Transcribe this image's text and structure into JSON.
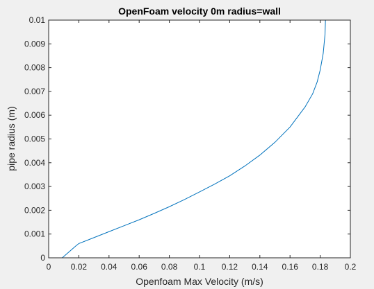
{
  "chart_data": {
    "type": "line",
    "title": "OpenFoam velocity 0m radius=wall",
    "xlabel": "Openfoam Max Velocity (m/s)",
    "ylabel": "pipe radius (m)",
    "xlim": [
      0,
      0.2
    ],
    "ylim": [
      0,
      0.01
    ],
    "x_ticks": [
      "0",
      "0.02",
      "0.04",
      "0.06",
      "0.08",
      "0.1",
      "0.12",
      "0.14",
      "0.16",
      "0.18",
      "0.2"
    ],
    "y_ticks": [
      "0",
      "0.001",
      "0.002",
      "0.003",
      "0.004",
      "0.005",
      "0.006",
      "0.007",
      "0.008",
      "0.009",
      "0.01"
    ],
    "grid": false,
    "series": [
      {
        "color": "#0072bd",
        "x": [
          0.0,
          0.009,
          0.018,
          0.02,
          0.03,
          0.04,
          0.05,
          0.06,
          0.07,
          0.08,
          0.09,
          0.1,
          0.11,
          0.12,
          0.13,
          0.14,
          0.15,
          0.16,
          0.17,
          0.175,
          0.178,
          0.18,
          0.182,
          0.1832,
          0.1835
        ],
        "y": [
          0.0,
          0.0,
          0.0005,
          0.0006,
          0.00085,
          0.0011,
          0.00135,
          0.0016,
          0.00187,
          0.00215,
          0.00245,
          0.00277,
          0.0031,
          0.00345,
          0.00386,
          0.00432,
          0.00486,
          0.0055,
          0.00635,
          0.0069,
          0.0074,
          0.0079,
          0.0086,
          0.0094,
          0.01
        ]
      }
    ]
  }
}
